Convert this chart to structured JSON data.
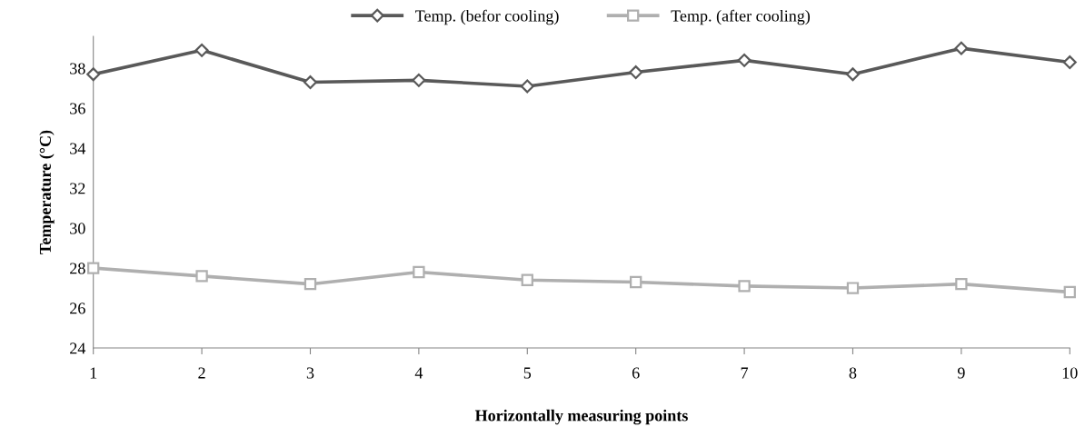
{
  "chart_data": {
    "type": "line",
    "xlabel": "Horizontally measuring points",
    "ylabel": "Temperature (°C)",
    "x": [
      1,
      2,
      3,
      4,
      5,
      6,
      7,
      8,
      9,
      10
    ],
    "series": [
      {
        "name": "Temp. (befor cooling)",
        "color": "#595959",
        "marker": "diamond",
        "values": [
          37.7,
          38.9,
          37.3,
          37.4,
          37.1,
          37.8,
          38.4,
          37.7,
          39.0,
          38.3
        ]
      },
      {
        "name": "Temp. (after cooling)",
        "color": "#afafaf",
        "marker": "square",
        "values": [
          28.0,
          27.6,
          27.2,
          27.8,
          27.4,
          27.3,
          27.1,
          27.0,
          27.2,
          26.8
        ]
      }
    ],
    "xlim": [
      1,
      10
    ],
    "xticks": [
      1,
      2,
      3,
      4,
      5,
      6,
      7,
      8,
      9,
      10
    ],
    "ylim": [
      24,
      39.6
    ],
    "yticks": [
      24,
      26,
      28,
      30,
      32,
      34,
      36,
      38
    ],
    "grid": false,
    "legend": "top"
  }
}
